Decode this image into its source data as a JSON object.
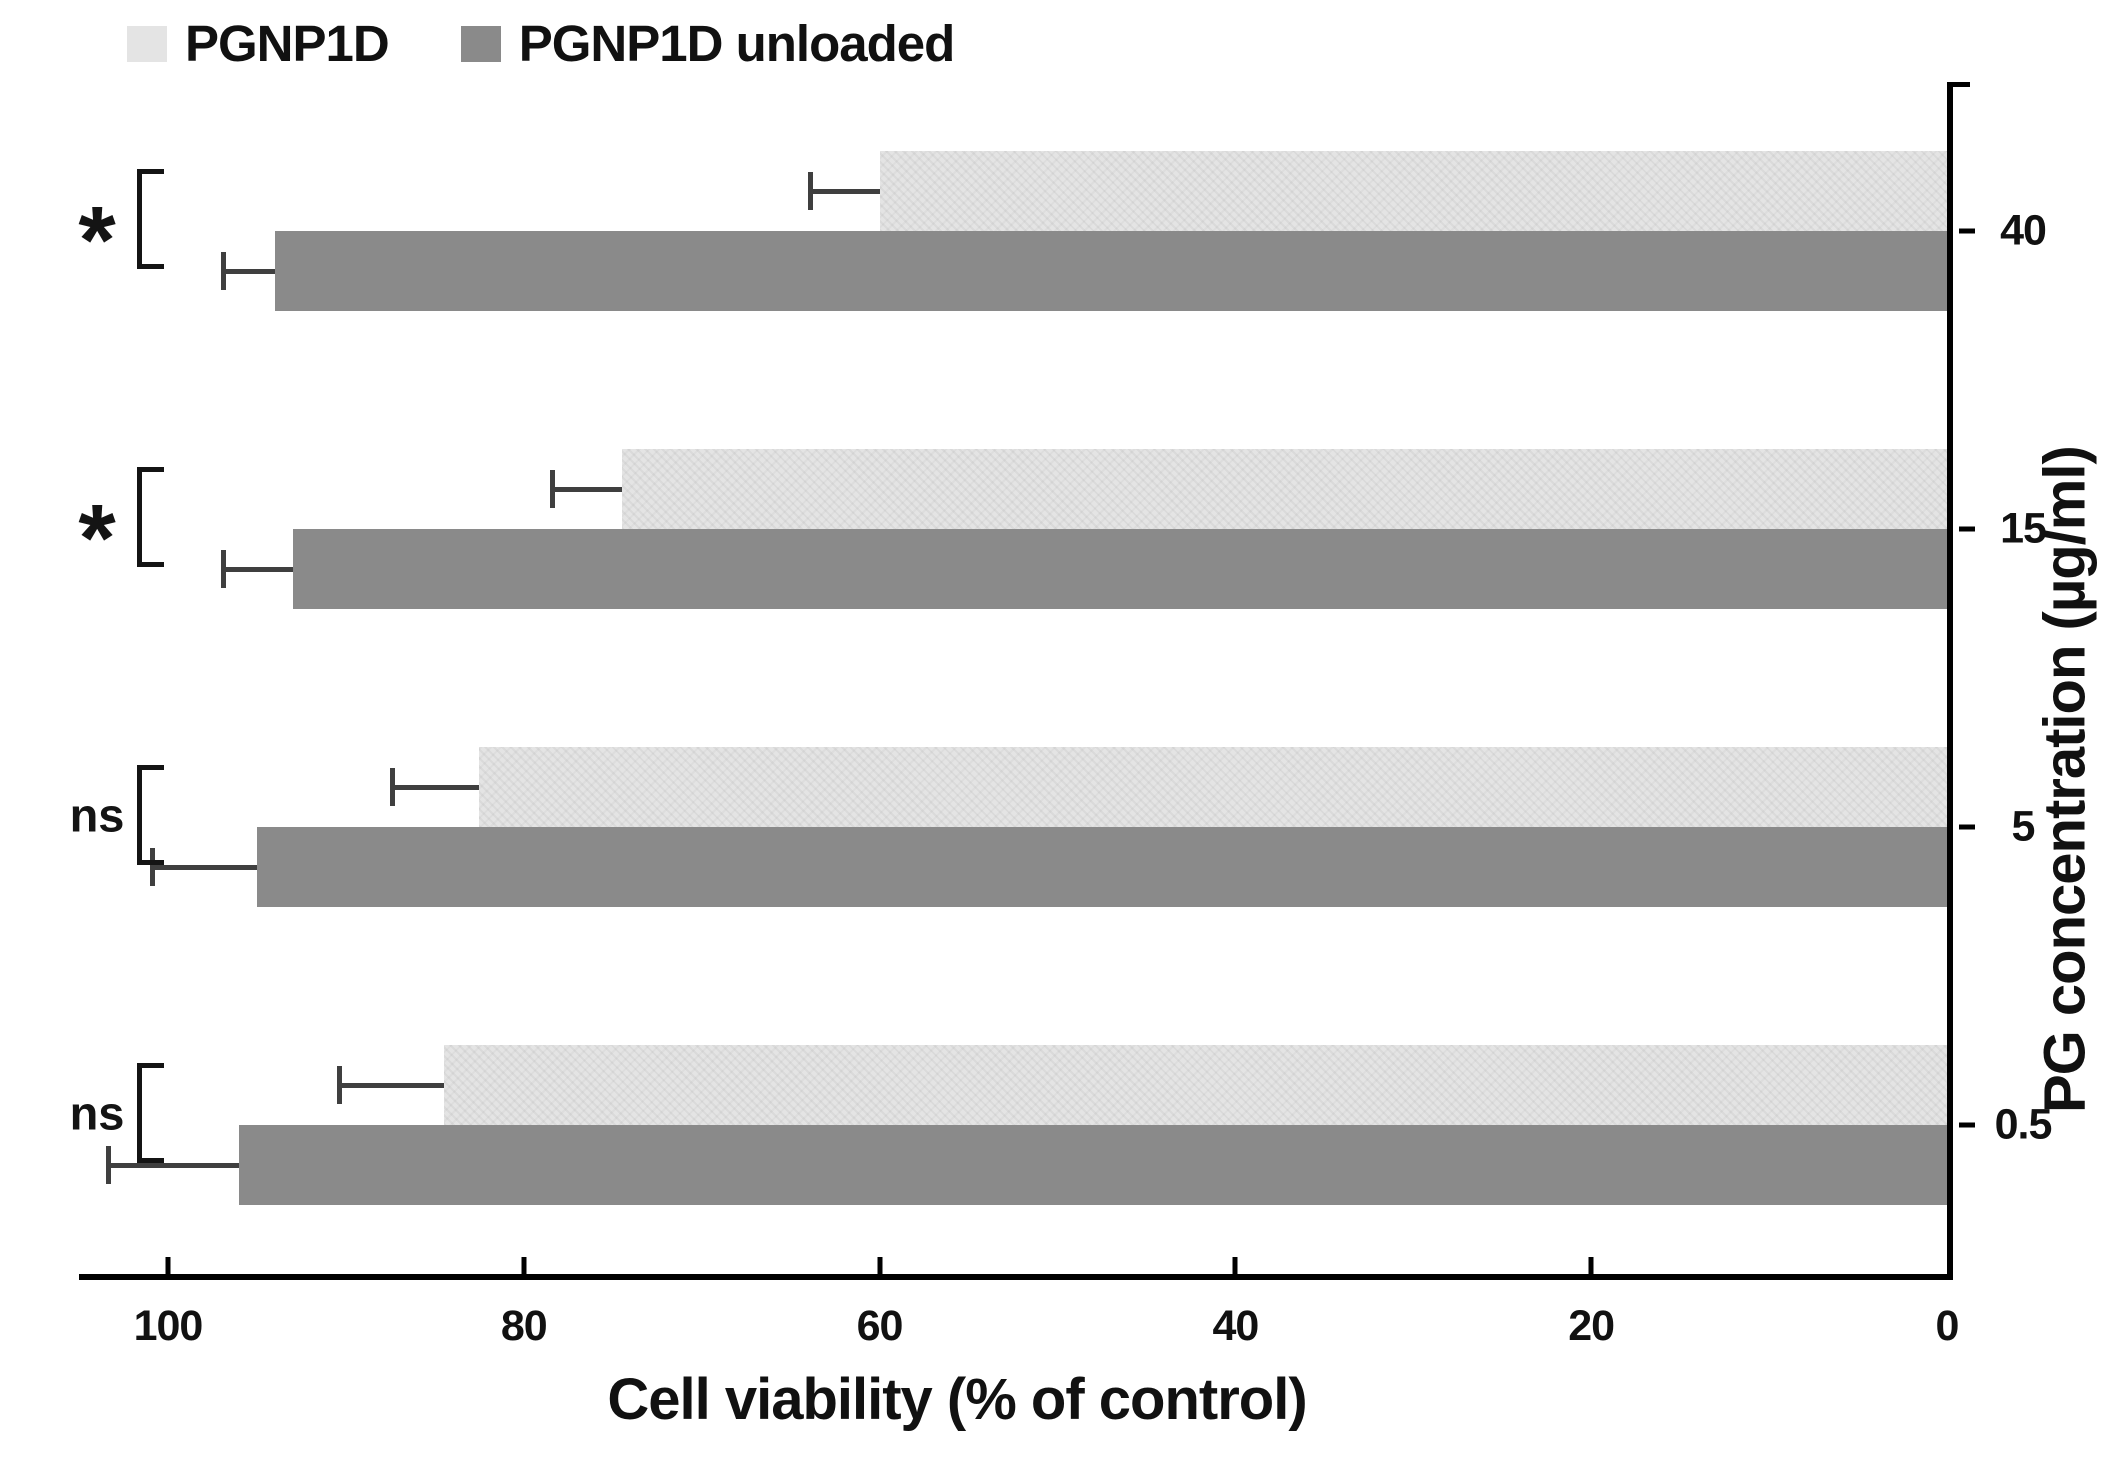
{
  "legend": {
    "items": [
      {
        "label": "PGNP1D",
        "color": "#e4e4e4",
        "patterned": true
      },
      {
        "label": "PGNP1D unloaded",
        "color": "#8a8a8a",
        "patterned": false
      }
    ]
  },
  "axes": {
    "x_title": "Cell viability (% of control)",
    "y_title": "PG concentration (µg/ml)",
    "axis_color": "#000000",
    "error_bar_color": "#3f3f3f"
  },
  "chart_data": {
    "type": "bar",
    "orientation": "horizontal",
    "title": "",
    "xlabel": "Cell viability (% of control)",
    "ylabel": "PG concentration (µg/ml)",
    "categories": [
      "40",
      "15",
      "5",
      "0.5"
    ],
    "series": [
      {
        "name": "PGNP1D",
        "color": "#e4e4e4",
        "values": [
          60,
          74.5,
          82.5,
          84.5
        ],
        "errors": [
          4,
          4,
          5,
          6
        ]
      },
      {
        "name": "PGNP1D unloaded",
        "color": "#8a8a8a",
        "values": [
          94,
          93,
          95,
          96
        ],
        "errors": [
          3,
          4,
          6,
          7.5
        ]
      }
    ],
    "significance": [
      "*",
      "*",
      "ns",
      "ns"
    ],
    "x_ticks": [
      100,
      80,
      60,
      40,
      20,
      0
    ],
    "xlim_left_value": 105,
    "xlim_right_value": 0,
    "x_axis_reversed": true,
    "grid": false,
    "legend_position": "top-left"
  }
}
